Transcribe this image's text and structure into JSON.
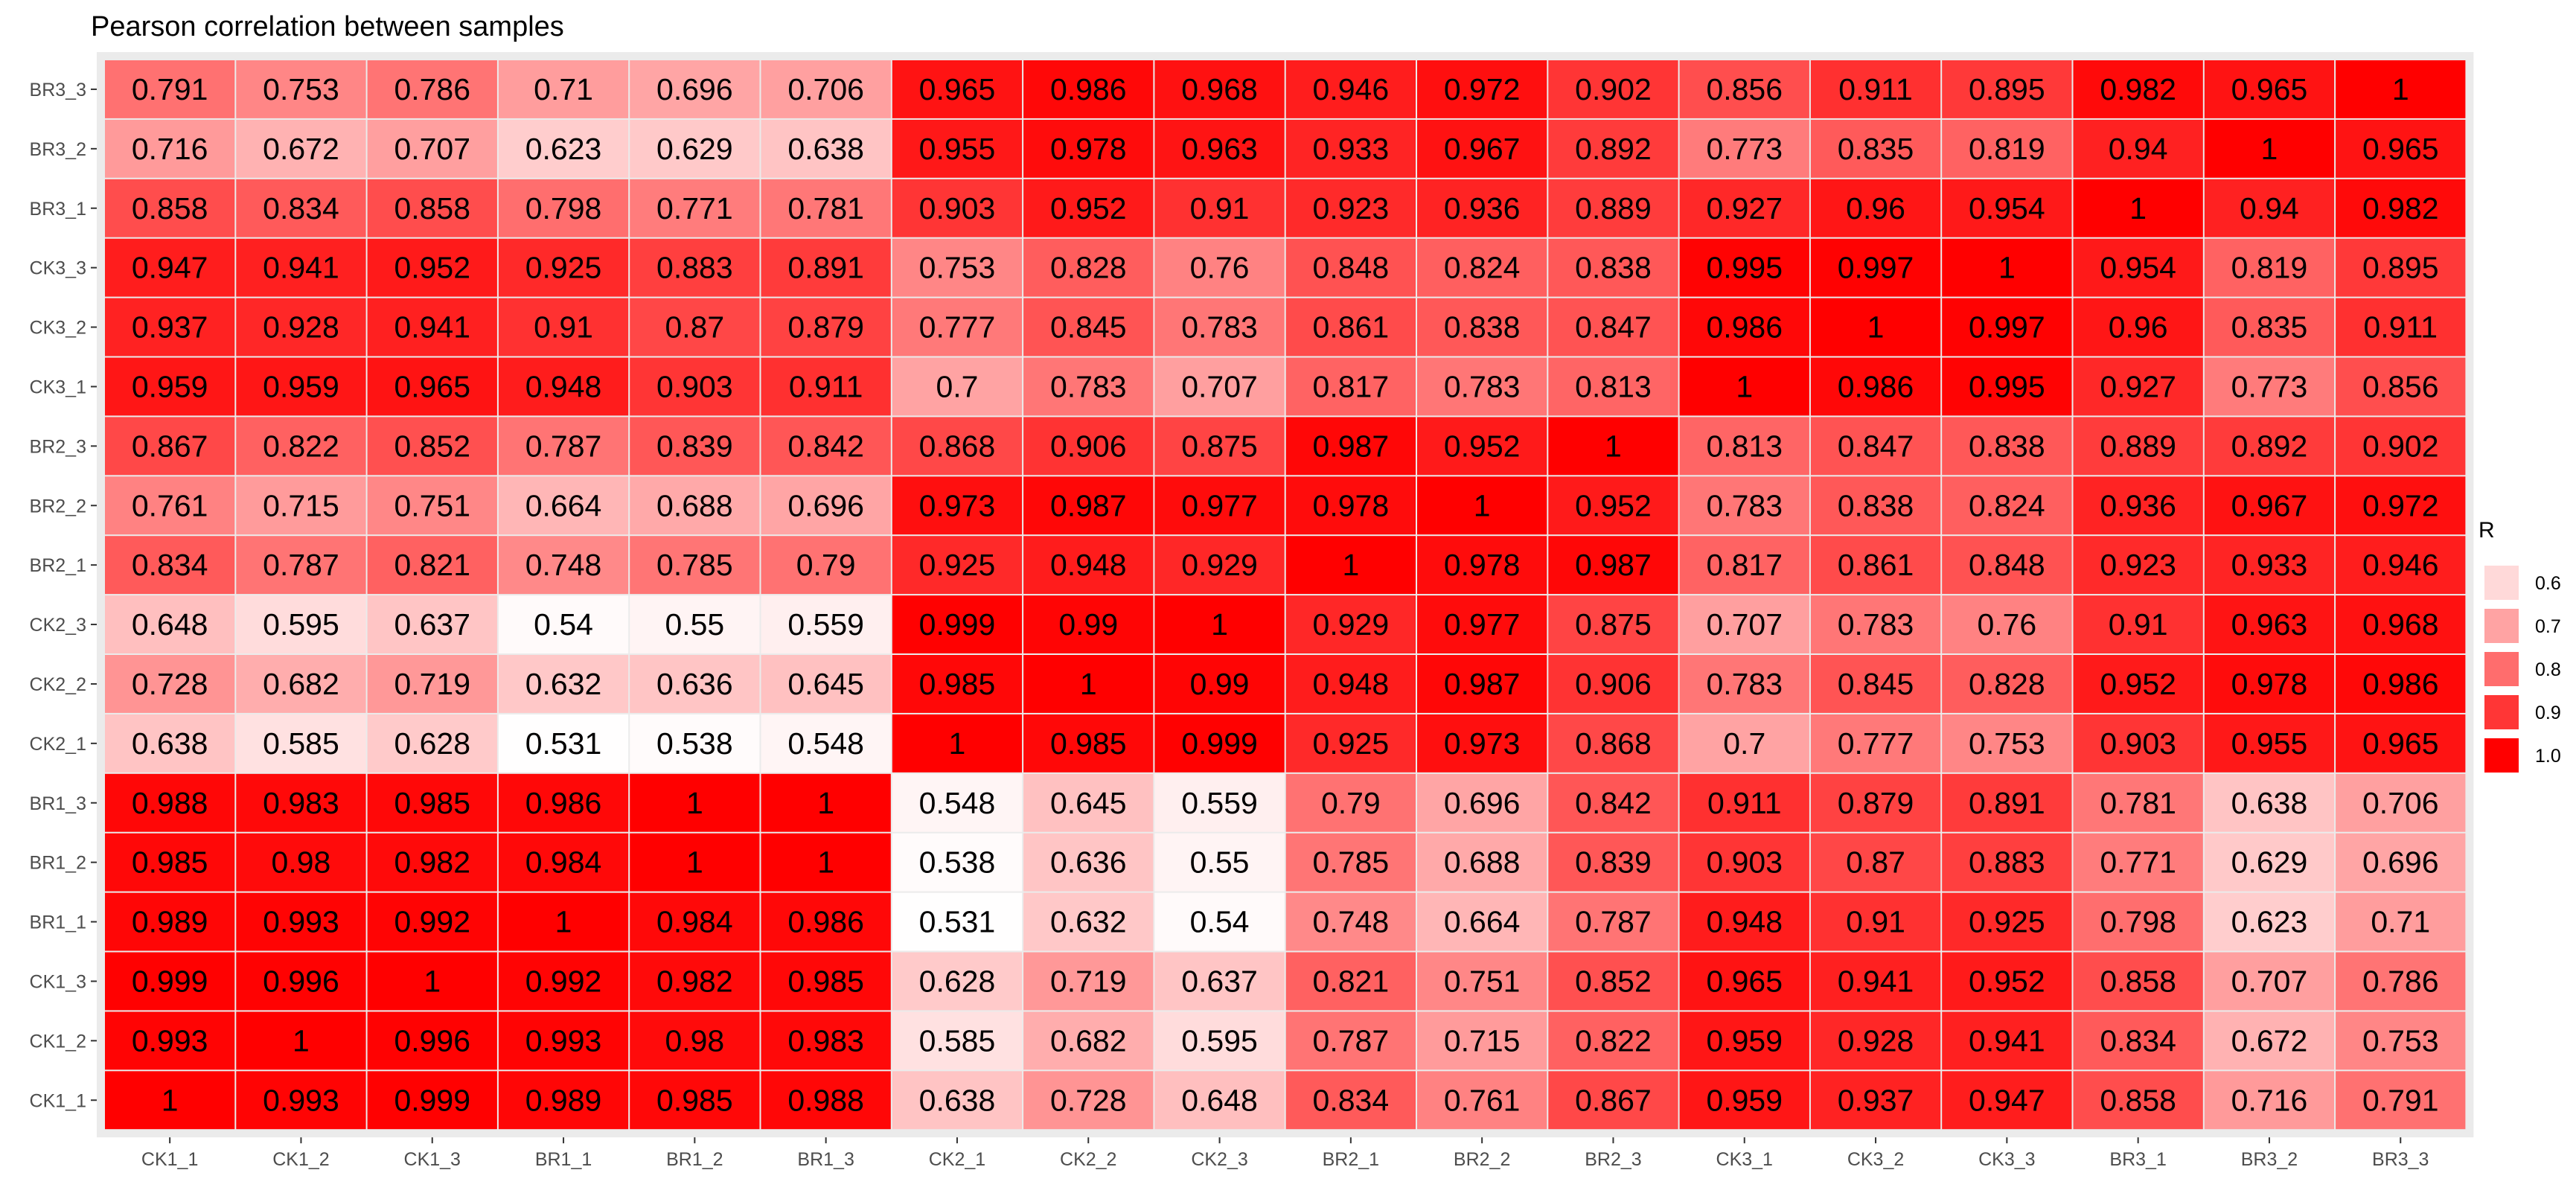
{
  "chart_data": {
    "type": "heatmap",
    "title": "Pearson correlation between samples",
    "x_labels": [
      "CK1_1",
      "CK1_2",
      "CK1_3",
      "BR1_1",
      "BR1_2",
      "BR1_3",
      "CK2_1",
      "CK2_2",
      "CK2_3",
      "BR2_1",
      "BR2_2",
      "BR2_3",
      "CK3_1",
      "CK3_2",
      "CK3_3",
      "BR3_1",
      "BR3_2",
      "BR3_3"
    ],
    "y_labels": [
      "BR3_3",
      "BR3_2",
      "BR3_1",
      "CK3_3",
      "CK3_2",
      "CK3_1",
      "BR2_3",
      "BR2_2",
      "BR2_1",
      "CK2_3",
      "CK2_2",
      "CK2_1",
      "BR1_3",
      "BR1_2",
      "BR1_1",
      "CK1_3",
      "CK1_2",
      "CK1_1"
    ],
    "cell_labels": [
      [
        "0.791",
        "0.753",
        "0.786",
        "0.71",
        "0.696",
        "0.706",
        "0.965",
        "0.986",
        "0.968",
        "0.946",
        "0.972",
        "0.902",
        "0.856",
        "0.911",
        "0.895",
        "0.982",
        "0.965",
        "1"
      ],
      [
        "0.716",
        "0.672",
        "0.707",
        "0.623",
        "0.629",
        "0.638",
        "0.955",
        "0.978",
        "0.963",
        "0.933",
        "0.967",
        "0.892",
        "0.773",
        "0.835",
        "0.819",
        "0.94",
        "1",
        "0.965"
      ],
      [
        "0.858",
        "0.834",
        "0.858",
        "0.798",
        "0.771",
        "0.781",
        "0.903",
        "0.952",
        "0.91",
        "0.923",
        "0.936",
        "0.889",
        "0.927",
        "0.96",
        "0.954",
        "1",
        "0.94",
        "0.982"
      ],
      [
        "0.947",
        "0.941",
        "0.952",
        "0.925",
        "0.883",
        "0.891",
        "0.753",
        "0.828",
        "0.76",
        "0.848",
        "0.824",
        "0.838",
        "0.995",
        "0.997",
        "1",
        "0.954",
        "0.819",
        "0.895"
      ],
      [
        "0.937",
        "0.928",
        "0.941",
        "0.91",
        "0.87",
        "0.879",
        "0.777",
        "0.845",
        "0.783",
        "0.861",
        "0.838",
        "0.847",
        "0.986",
        "1",
        "0.997",
        "0.96",
        "0.835",
        "0.911"
      ],
      [
        "0.959",
        "0.959",
        "0.965",
        "0.948",
        "0.903",
        "0.911",
        "0.7",
        "0.783",
        "0.707",
        "0.817",
        "0.783",
        "0.813",
        "1",
        "0.986",
        "0.995",
        "0.927",
        "0.773",
        "0.856"
      ],
      [
        "0.867",
        "0.822",
        "0.852",
        "0.787",
        "0.839",
        "0.842",
        "0.868",
        "0.906",
        "0.875",
        "0.987",
        "0.952",
        "1",
        "0.813",
        "0.847",
        "0.838",
        "0.889",
        "0.892",
        "0.902"
      ],
      [
        "0.761",
        "0.715",
        "0.751",
        "0.664",
        "0.688",
        "0.696",
        "0.973",
        "0.987",
        "0.977",
        "0.978",
        "1",
        "0.952",
        "0.783",
        "0.838",
        "0.824",
        "0.936",
        "0.967",
        "0.972"
      ],
      [
        "0.834",
        "0.787",
        "0.821",
        "0.748",
        "0.785",
        "0.79",
        "0.925",
        "0.948",
        "0.929",
        "1",
        "0.978",
        "0.987",
        "0.817",
        "0.861",
        "0.848",
        "0.923",
        "0.933",
        "0.946"
      ],
      [
        "0.648",
        "0.595",
        "0.637",
        "0.54",
        "0.55",
        "0.559",
        "0.999",
        "0.99",
        "1",
        "0.929",
        "0.977",
        "0.875",
        "0.707",
        "0.783",
        "0.76",
        "0.91",
        "0.963",
        "0.968"
      ],
      [
        "0.728",
        "0.682",
        "0.719",
        "0.632",
        "0.636",
        "0.645",
        "0.985",
        "1",
        "0.99",
        "0.948",
        "0.987",
        "0.906",
        "0.783",
        "0.845",
        "0.828",
        "0.952",
        "0.978",
        "0.986"
      ],
      [
        "0.638",
        "0.585",
        "0.628",
        "0.531",
        "0.538",
        "0.548",
        "1",
        "0.985",
        "0.999",
        "0.925",
        "0.973",
        "0.868",
        "0.7",
        "0.777",
        "0.753",
        "0.903",
        "0.955",
        "0.965"
      ],
      [
        "0.988",
        "0.983",
        "0.985",
        "0.986",
        "1",
        "1",
        "0.548",
        "0.645",
        "0.559",
        "0.79",
        "0.696",
        "0.842",
        "0.911",
        "0.879",
        "0.891",
        "0.781",
        "0.638",
        "0.706"
      ],
      [
        "0.985",
        "0.98",
        "0.982",
        "0.984",
        "1",
        "1",
        "0.538",
        "0.636",
        "0.55",
        "0.785",
        "0.688",
        "0.839",
        "0.903",
        "0.87",
        "0.883",
        "0.771",
        "0.629",
        "0.696"
      ],
      [
        "0.989",
        "0.993",
        "0.992",
        "1",
        "0.984",
        "0.986",
        "0.531",
        "0.632",
        "0.54",
        "0.748",
        "0.664",
        "0.787",
        "0.948",
        "0.91",
        "0.925",
        "0.798",
        "0.623",
        "0.71"
      ],
      [
        "0.999",
        "0.996",
        "1",
        "0.992",
        "0.982",
        "0.985",
        "0.628",
        "0.719",
        "0.637",
        "0.821",
        "0.751",
        "0.852",
        "0.965",
        "0.941",
        "0.952",
        "0.858",
        "0.707",
        "0.786"
      ],
      [
        "0.993",
        "1",
        "0.996",
        "0.993",
        "0.98",
        "0.983",
        "0.585",
        "0.682",
        "0.595",
        "0.787",
        "0.715",
        "0.822",
        "0.959",
        "0.928",
        "0.941",
        "0.834",
        "0.672",
        "0.753"
      ],
      [
        "1",
        "0.993",
        "0.999",
        "0.989",
        "0.985",
        "0.988",
        "0.638",
        "0.728",
        "0.648",
        "0.834",
        "0.761",
        "0.867",
        "0.959",
        "0.937",
        "0.947",
        "0.858",
        "0.716",
        "0.791"
      ]
    ],
    "legend": {
      "title": "R",
      "labels": [
        "0.6",
        "0.7",
        "0.8",
        "0.9",
        "1.0"
      ],
      "values": [
        0.6,
        0.7,
        0.8,
        0.9,
        1.0
      ]
    },
    "value_range": [
      0.53,
      1.0
    ],
    "colors": {
      "low": "#ffffff",
      "high": "#ff0000",
      "panel": "#ebebeb",
      "grid": "#ffffff"
    },
    "grid": true
  }
}
